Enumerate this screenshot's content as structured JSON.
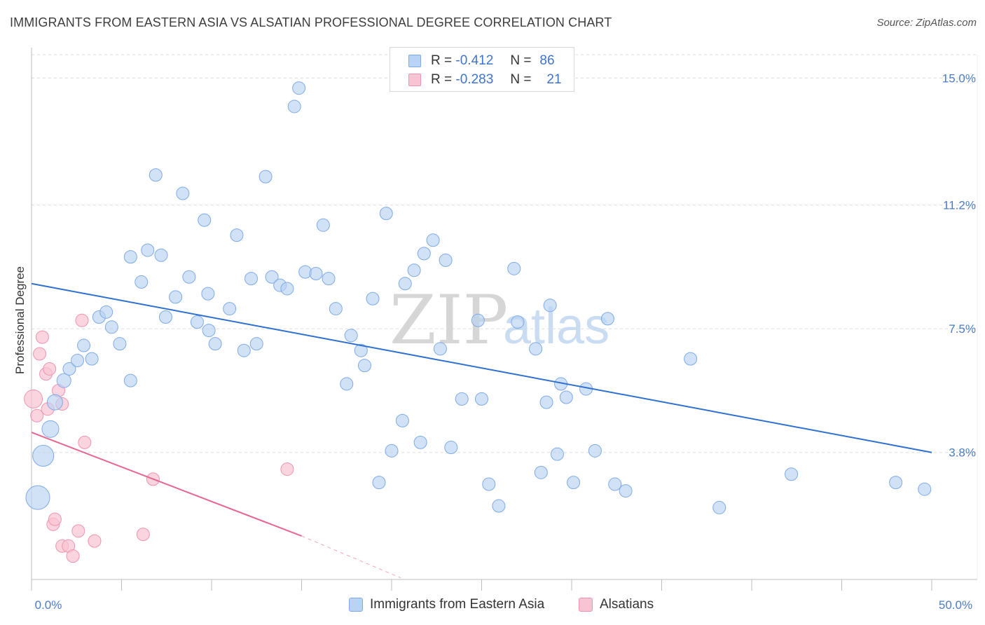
{
  "header": {
    "title": "IMMIGRANTS FROM EASTERN ASIA VS ALSATIAN PROFESSIONAL DEGREE CORRELATION CHART",
    "source": "Source: ZipAtlas.com"
  },
  "watermark": {
    "zip": "ZIP",
    "atlas": "atlas"
  },
  "legend": {
    "series1": {
      "r_label": "R =",
      "r_value": "-0.412",
      "n_label": "N =",
      "n_value": "86"
    },
    "series2": {
      "r_label": "R =",
      "r_value": "-0.283",
      "n_label": "N =",
      "n_value": "21"
    }
  },
  "bottom_legend": {
    "series1": "Immigrants from Eastern Asia",
    "series2": "Alsatians"
  },
  "colors": {
    "blue_fill": "#b8d3f3",
    "blue_stroke": "#7eaae6",
    "blue_line": "#2f6fcf",
    "pink_fill": "#f8c3d2",
    "pink_stroke": "#ef93ae",
    "pink_line": "#e5678f",
    "grid": "#dcdcdc",
    "tick_text": "#4a7cc8"
  },
  "chart_data": {
    "type": "scatter",
    "title": "IMMIGRANTS FROM EASTERN ASIA VS ALSATIAN PROFESSIONAL DEGREE CORRELATION CHART",
    "xlabel": "",
    "ylabel": "Professional Degree",
    "xlim": [
      0,
      50
    ],
    "ylim": [
      0,
      15.7
    ],
    "x_tick_labels": {
      "min": "0.0%",
      "max": "50.0%"
    },
    "y_ticks": [
      {
        "value": 3.8,
        "label": "3.8%"
      },
      {
        "value": 7.5,
        "label": "7.5%"
      },
      {
        "value": 11.2,
        "label": "11.2%"
      },
      {
        "value": 15.0,
        "label": "15.0%"
      }
    ],
    "x_minor_ticks": [
      0,
      5,
      10,
      15,
      20,
      25,
      30,
      35,
      40,
      45,
      50
    ],
    "grid": true,
    "series": [
      {
        "name": "Immigrants from Eastern Asia",
        "color": "#b8d3f3",
        "trend": {
          "x": [
            0,
            50
          ],
          "y": [
            8.85,
            3.8
          ]
        },
        "points": [
          {
            "x": 0.35,
            "y": 2.45,
            "s": 17
          },
          {
            "x": 0.65,
            "y": 3.7,
            "s": 15
          },
          {
            "x": 1.05,
            "y": 4.5,
            "s": 12
          },
          {
            "x": 1.3,
            "y": 5.3,
            "s": 11
          },
          {
            "x": 1.8,
            "y": 5.95,
            "s": 10
          },
          {
            "x": 2.1,
            "y": 6.3,
            "s": 9
          },
          {
            "x": 2.55,
            "y": 6.55,
            "s": 9
          },
          {
            "x": 2.9,
            "y": 7.0,
            "s": 9
          },
          {
            "x": 3.35,
            "y": 6.6,
            "s": 9
          },
          {
            "x": 3.75,
            "y": 7.85,
            "s": 9
          },
          {
            "x": 4.15,
            "y": 8.0,
            "s": 9
          },
          {
            "x": 4.45,
            "y": 7.55,
            "s": 9
          },
          {
            "x": 4.9,
            "y": 7.05,
            "s": 9
          },
          {
            "x": 5.5,
            "y": 9.65,
            "s": 9
          },
          {
            "x": 5.5,
            "y": 5.95,
            "s": 9
          },
          {
            "x": 6.1,
            "y": 8.9,
            "s": 9
          },
          {
            "x": 6.45,
            "y": 9.85,
            "s": 9
          },
          {
            "x": 6.9,
            "y": 12.1,
            "s": 9
          },
          {
            "x": 7.2,
            "y": 9.7,
            "s": 9
          },
          {
            "x": 7.45,
            "y": 7.85,
            "s": 9
          },
          {
            "x": 8.0,
            "y": 8.45,
            "s": 9
          },
          {
            "x": 8.4,
            "y": 11.55,
            "s": 9
          },
          {
            "x": 8.75,
            "y": 9.05,
            "s": 9
          },
          {
            "x": 9.2,
            "y": 7.7,
            "s": 9
          },
          {
            "x": 9.6,
            "y": 10.75,
            "s": 9
          },
          {
            "x": 9.8,
            "y": 8.55,
            "s": 9
          },
          {
            "x": 9.85,
            "y": 7.45,
            "s": 9
          },
          {
            "x": 10.2,
            "y": 7.05,
            "s": 9
          },
          {
            "x": 11.0,
            "y": 8.1,
            "s": 9
          },
          {
            "x": 11.4,
            "y": 10.3,
            "s": 9
          },
          {
            "x": 11.8,
            "y": 6.85,
            "s": 9
          },
          {
            "x": 12.2,
            "y": 9.0,
            "s": 9
          },
          {
            "x": 12.5,
            "y": 7.05,
            "s": 9
          },
          {
            "x": 13.0,
            "y": 12.05,
            "s": 9
          },
          {
            "x": 13.35,
            "y": 9.05,
            "s": 9
          },
          {
            "x": 13.8,
            "y": 8.8,
            "s": 9
          },
          {
            "x": 14.2,
            "y": 8.7,
            "s": 9
          },
          {
            "x": 14.6,
            "y": 14.15,
            "s": 9
          },
          {
            "x": 14.85,
            "y": 14.7,
            "s": 9
          },
          {
            "x": 15.2,
            "y": 9.2,
            "s": 9
          },
          {
            "x": 15.8,
            "y": 9.15,
            "s": 9
          },
          {
            "x": 16.2,
            "y": 10.6,
            "s": 9
          },
          {
            "x": 16.5,
            "y": 9.0,
            "s": 9
          },
          {
            "x": 16.9,
            "y": 8.1,
            "s": 9
          },
          {
            "x": 17.5,
            "y": 5.85,
            "s": 9
          },
          {
            "x": 17.75,
            "y": 7.3,
            "s": 9
          },
          {
            "x": 18.3,
            "y": 6.85,
            "s": 9
          },
          {
            "x": 18.5,
            "y": 6.4,
            "s": 9
          },
          {
            "x": 18.95,
            "y": 8.4,
            "s": 9
          },
          {
            "x": 19.3,
            "y": 2.9,
            "s": 9
          },
          {
            "x": 19.7,
            "y": 10.95,
            "s": 9
          },
          {
            "x": 20.0,
            "y": 3.85,
            "s": 9
          },
          {
            "x": 20.6,
            "y": 4.75,
            "s": 9
          },
          {
            "x": 20.75,
            "y": 8.85,
            "s": 9
          },
          {
            "x": 21.25,
            "y": 9.25,
            "s": 9
          },
          {
            "x": 21.6,
            "y": 4.1,
            "s": 9
          },
          {
            "x": 21.8,
            "y": 9.75,
            "s": 9
          },
          {
            "x": 22.3,
            "y": 10.15,
            "s": 9
          },
          {
            "x": 22.7,
            "y": 6.9,
            "s": 9
          },
          {
            "x": 23.0,
            "y": 9.55,
            "s": 9
          },
          {
            "x": 23.3,
            "y": 3.95,
            "s": 9
          },
          {
            "x": 23.9,
            "y": 5.4,
            "s": 9
          },
          {
            "x": 24.8,
            "y": 7.75,
            "s": 9
          },
          {
            "x": 25.0,
            "y": 5.4,
            "s": 9
          },
          {
            "x": 25.4,
            "y": 2.85,
            "s": 9
          },
          {
            "x": 25.95,
            "y": 2.2,
            "s": 9
          },
          {
            "x": 27.0,
            "y": 7.7,
            "s": 9
          },
          {
            "x": 26.8,
            "y": 9.3,
            "s": 9
          },
          {
            "x": 28.0,
            "y": 6.9,
            "s": 9
          },
          {
            "x": 28.3,
            "y": 3.2,
            "s": 9
          },
          {
            "x": 28.6,
            "y": 5.3,
            "s": 9
          },
          {
            "x": 28.8,
            "y": 8.2,
            "s": 9
          },
          {
            "x": 29.2,
            "y": 3.75,
            "s": 9
          },
          {
            "x": 29.4,
            "y": 5.85,
            "s": 9
          },
          {
            "x": 29.7,
            "y": 5.45,
            "s": 9
          },
          {
            "x": 30.1,
            "y": 2.9,
            "s": 9
          },
          {
            "x": 30.8,
            "y": 5.7,
            "s": 9
          },
          {
            "x": 31.3,
            "y": 3.85,
            "s": 9
          },
          {
            "x": 32.0,
            "y": 7.8,
            "s": 9
          },
          {
            "x": 32.4,
            "y": 2.85,
            "s": 9
          },
          {
            "x": 33.0,
            "y": 2.65,
            "s": 9
          },
          {
            "x": 36.6,
            "y": 6.6,
            "s": 9
          },
          {
            "x": 38.2,
            "y": 2.15,
            "s": 9
          },
          {
            "x": 42.2,
            "y": 3.15,
            "s": 9
          },
          {
            "x": 48.0,
            "y": 2.9,
            "s": 9
          },
          {
            "x": 49.6,
            "y": 2.7,
            "s": 9
          }
        ]
      },
      {
        "name": "Alsatians",
        "color": "#f8c3d2",
        "trend": {
          "x": [
            0,
            15
          ],
          "y": [
            4.4,
            1.3
          ]
        },
        "trend_dashed": {
          "x": [
            15,
            20.5
          ],
          "y": [
            1.3,
            0.05
          ]
        },
        "points": [
          {
            "x": 0.1,
            "y": 5.4,
            "s": 13
          },
          {
            "x": 0.3,
            "y": 4.9,
            "s": 9
          },
          {
            "x": 0.45,
            "y": 6.75,
            "s": 9
          },
          {
            "x": 0.6,
            "y": 7.25,
            "s": 9
          },
          {
            "x": 0.8,
            "y": 6.15,
            "s": 9
          },
          {
            "x": 0.9,
            "y": 5.1,
            "s": 9
          },
          {
            "x": 1.0,
            "y": 6.3,
            "s": 9
          },
          {
            "x": 1.2,
            "y": 1.65,
            "s": 9
          },
          {
            "x": 1.3,
            "y": 1.8,
            "s": 9
          },
          {
            "x": 1.5,
            "y": 5.65,
            "s": 9
          },
          {
            "x": 1.7,
            "y": 5.25,
            "s": 9
          },
          {
            "x": 1.7,
            "y": 1.0,
            "s": 9
          },
          {
            "x": 2.05,
            "y": 1.0,
            "s": 9
          },
          {
            "x": 2.3,
            "y": 0.7,
            "s": 9
          },
          {
            "x": 2.6,
            "y": 1.45,
            "s": 9
          },
          {
            "x": 2.8,
            "y": 7.75,
            "s": 9
          },
          {
            "x": 2.95,
            "y": 4.1,
            "s": 9
          },
          {
            "x": 3.5,
            "y": 1.15,
            "s": 9
          },
          {
            "x": 6.2,
            "y": 1.35,
            "s": 9
          },
          {
            "x": 6.75,
            "y": 3.0,
            "s": 9
          },
          {
            "x": 14.2,
            "y": 3.3,
            "s": 9
          }
        ]
      }
    ]
  }
}
